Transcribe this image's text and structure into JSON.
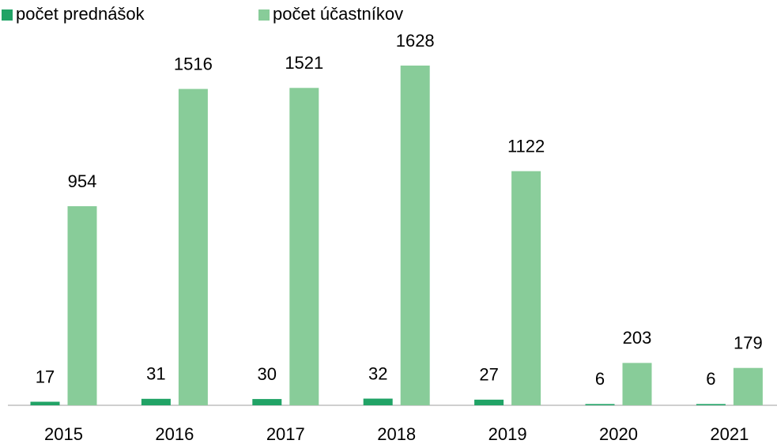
{
  "chart_data": {
    "type": "bar",
    "categories": [
      "2015",
      "2016",
      "2017",
      "2018",
      "2019",
      "2020",
      "2021"
    ],
    "series": [
      {
        "name": "počet prednášok",
        "color": "#21a366",
        "values": [
          17,
          31,
          30,
          32,
          27,
          6,
          6
        ]
      },
      {
        "name": "počet účastníkov",
        "color": "#88cc99",
        "values": [
          954,
          1516,
          1521,
          1628,
          1122,
          203,
          179
        ]
      }
    ],
    "legend": "top-left"
  }
}
